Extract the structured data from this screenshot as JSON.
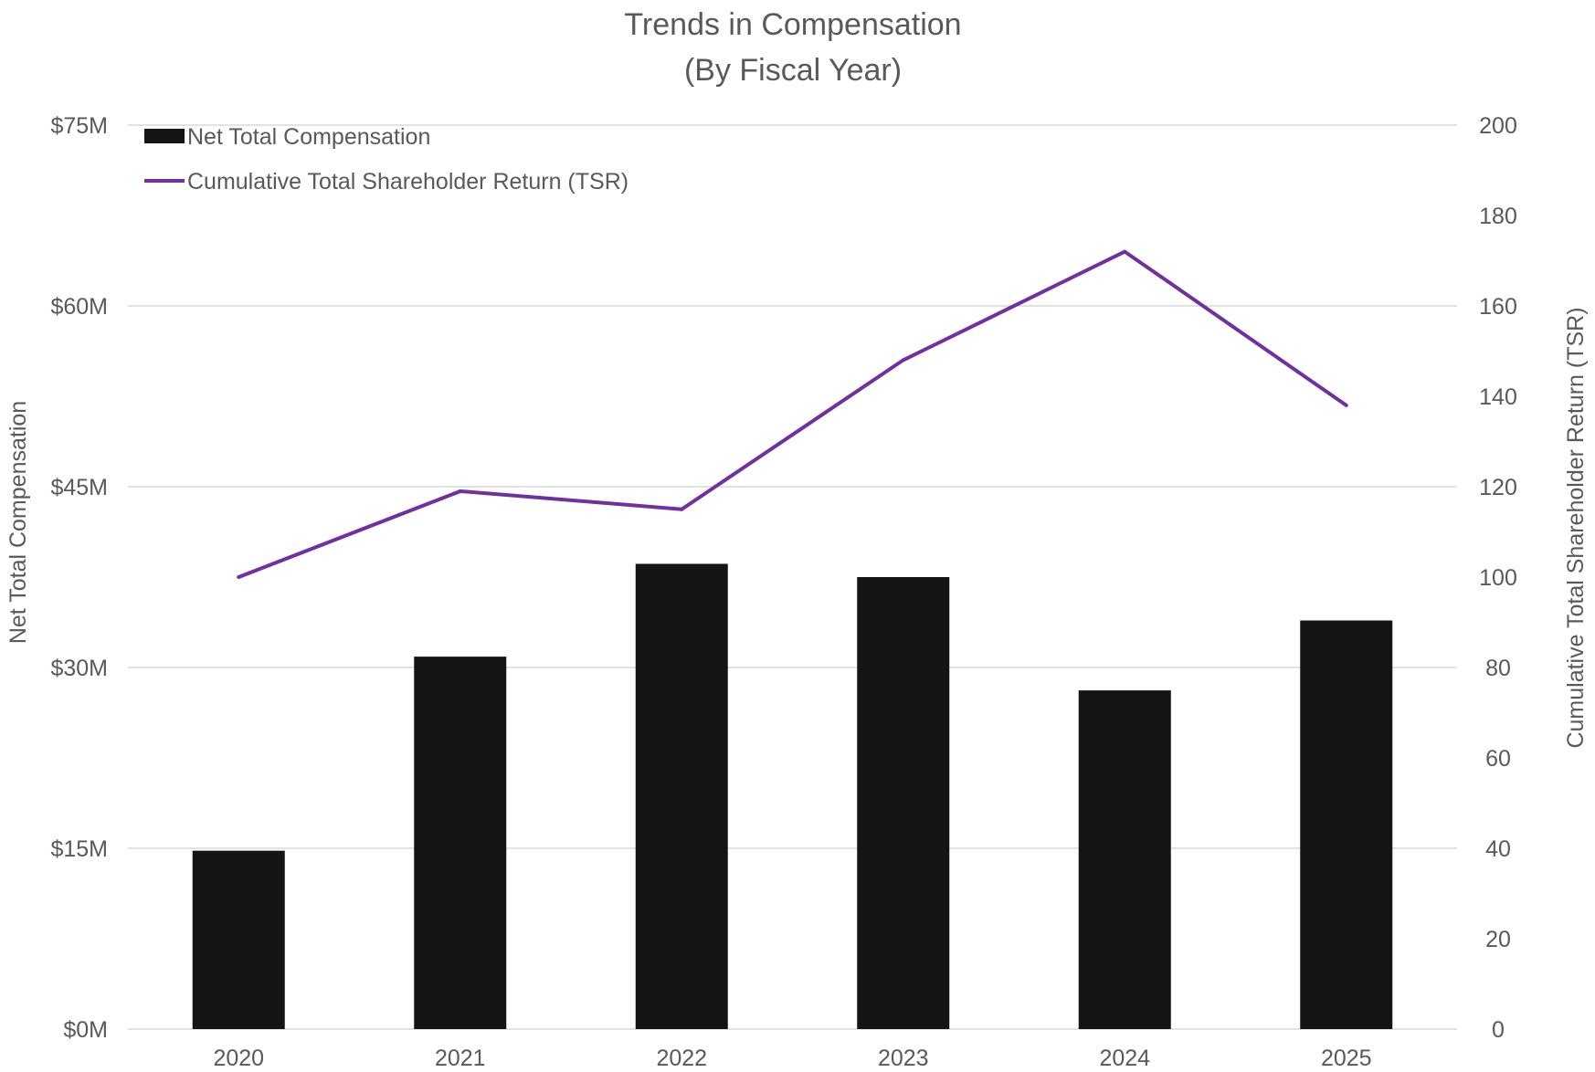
{
  "chart_data": {
    "type": "bar+line",
    "title": [
      "Trends in Compensation",
      "(By Fiscal Year)"
    ],
    "categories": [
      "2020",
      "2021",
      "2022",
      "2023",
      "2024",
      "2025"
    ],
    "series": [
      {
        "name": "Net Total Compensation",
        "type": "bar",
        "axis": "left",
        "color": "#141414",
        "values": [
          14.8,
          30.9,
          38.6,
          37.5,
          28.1,
          33.9
        ]
      },
      {
        "name": "Cumulative Total Shareholder Return (TSR)",
        "type": "line",
        "axis": "right",
        "color": "#7030a0",
        "values": [
          100,
          119,
          115,
          148,
          172,
          138
        ]
      }
    ],
    "y_left": {
      "label": "Net Total Compensation",
      "min": 0,
      "max": 75,
      "step": 15,
      "tick_labels": [
        "$0M",
        "$15M",
        "$30M",
        "$45M",
        "$60M",
        "$75M"
      ]
    },
    "y_right": {
      "label": "Cumulative Total Shareholder Return (TSR)",
      "min": 0,
      "max": 200,
      "step": 20,
      "tick_labels": [
        "0",
        "20",
        "40",
        "60",
        "80",
        "100",
        "120",
        "140",
        "160",
        "180",
        "200"
      ]
    },
    "grid": true,
    "legend_position": "top-left"
  }
}
